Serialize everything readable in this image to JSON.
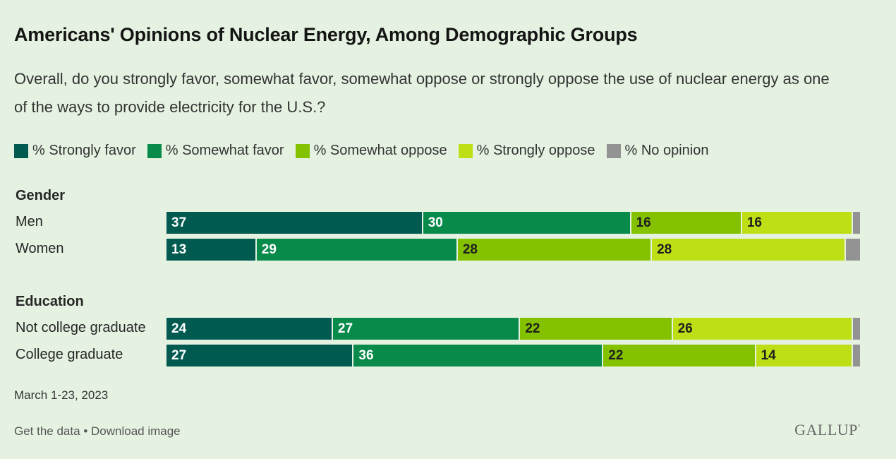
{
  "title": "Americans' Opinions of Nuclear Energy, Among Demographic Groups",
  "subtitle": "Overall, do you strongly favor, somewhat favor, somewhat oppose or strongly oppose the use of nuclear energy as one of the ways to provide electricity for the U.S.?",
  "note": "March 1-23, 2023",
  "footer": {
    "get_data": "Get the data",
    "separator": "•",
    "download": "Download image"
  },
  "brand": "GALLUP",
  "colors": {
    "strongly_favor": "#005a50",
    "somewhat_favor": "#088a4b",
    "somewhat_oppose": "#84c200",
    "strongly_oppose": "#bedf16",
    "no_opinion": "#939393",
    "label_light": "#ffffff",
    "label_dark": "#1f1f1f"
  },
  "chart_data": {
    "type": "bar",
    "orientation": "horizontal",
    "stacked": true,
    "xlim": [
      0,
      100
    ],
    "series": [
      {
        "name": "% Strongly favor",
        "color": "#005a50"
      },
      {
        "name": "% Somewhat favor",
        "color": "#088a4b"
      },
      {
        "name": "% Somewhat oppose",
        "color": "#84c200"
      },
      {
        "name": "% Strongly oppose",
        "color": "#bedf16"
      },
      {
        "name": "% No opinion",
        "color": "#939393"
      }
    ],
    "groups": [
      {
        "name": "Gender",
        "rows": [
          {
            "label": "Men",
            "values": [
              37,
              30,
              16,
              16,
              1
            ]
          },
          {
            "label": "Women",
            "values": [
              13,
              29,
              28,
              28,
              2
            ]
          }
        ]
      },
      {
        "name": "Education",
        "rows": [
          {
            "label": "Not college graduate",
            "values": [
              24,
              27,
              22,
              26,
              1
            ]
          },
          {
            "label": "College graduate",
            "values": [
              27,
              36,
              22,
              14,
              1
            ]
          }
        ]
      }
    ]
  }
}
